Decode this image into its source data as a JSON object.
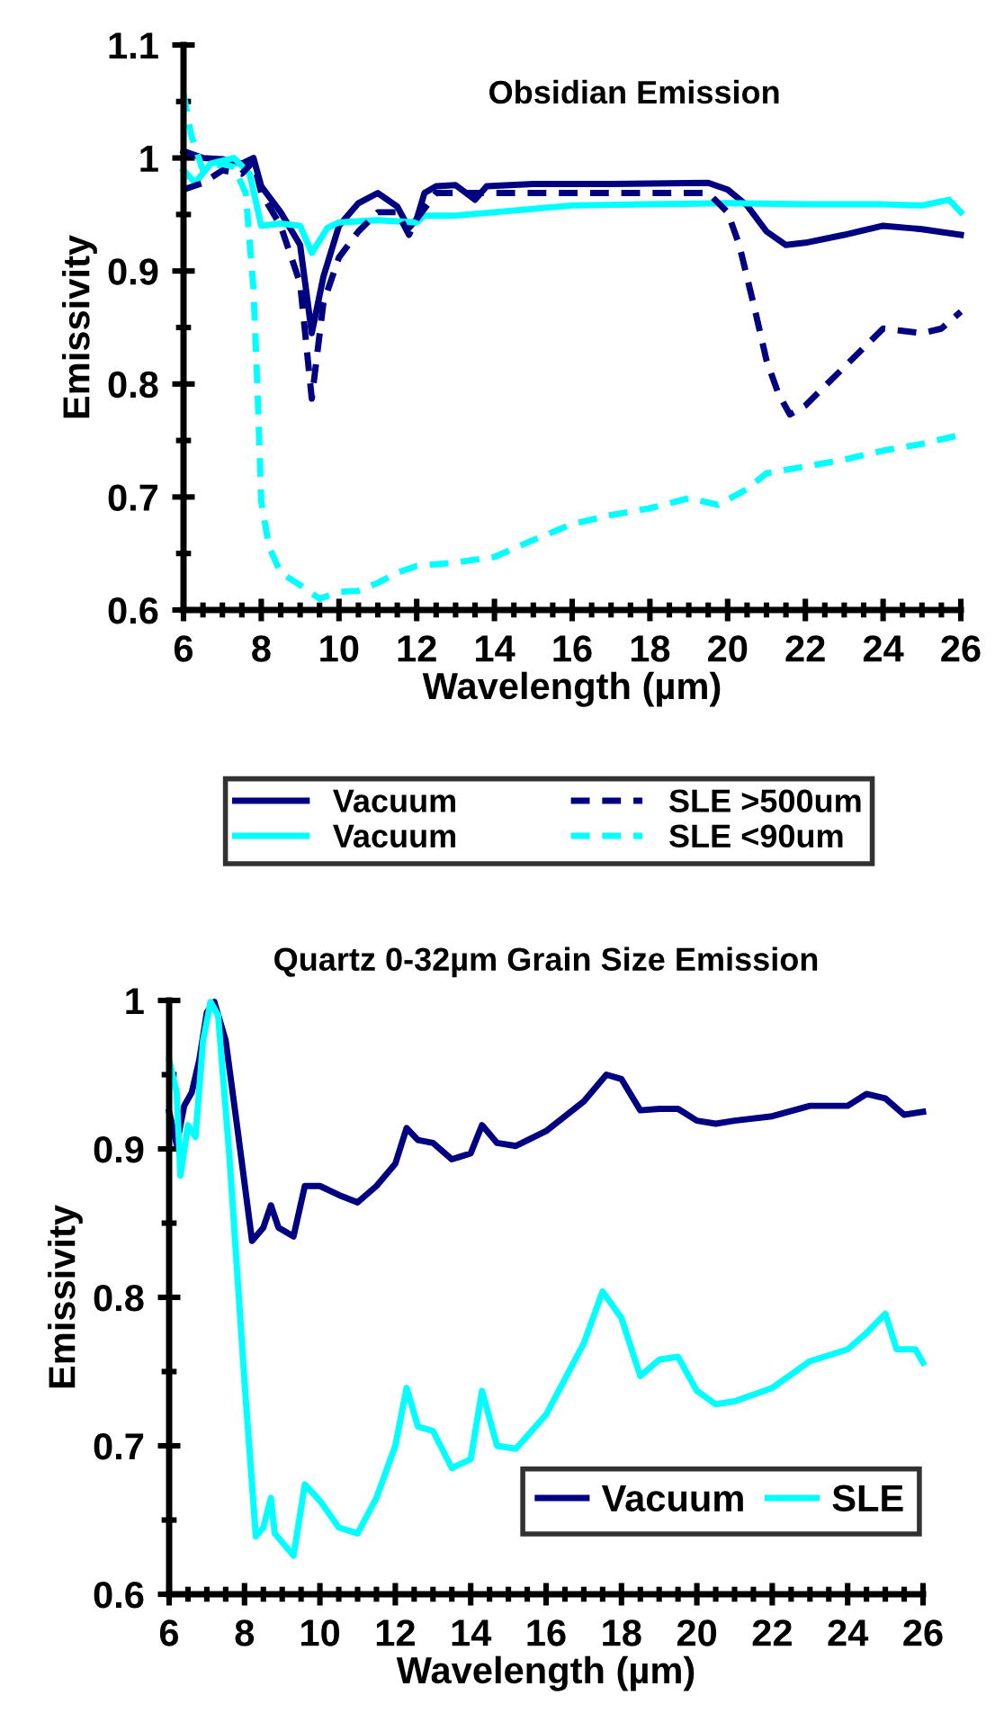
{
  "chart_data": [
    {
      "type": "line",
      "title": "Obsidian Emission",
      "xlabel": "Wavelength (µm)",
      "ylabel": "Emissivity",
      "legend": "bottom",
      "grid": false,
      "marker": "none",
      "xlim": [
        6,
        26
      ],
      "ylim": [
        0.6,
        1.1
      ],
      "xticks": [
        6,
        {
          "value": 6.5,
          "label": null
        },
        {
          "value": 7,
          "label": null
        },
        {
          "value": 7.5,
          "label": null
        },
        8,
        {
          "value": 8.5,
          "label": null
        },
        {
          "value": 9,
          "label": null
        },
        {
          "value": 9.5,
          "label": null
        },
        10,
        {
          "value": 10.5,
          "label": null
        },
        {
          "value": 11,
          "label": null
        },
        {
          "value": 11.5,
          "label": null
        },
        12,
        {
          "value": 12.5,
          "label": null
        },
        {
          "value": 13,
          "label": null
        },
        {
          "value": 13.5,
          "label": null
        },
        14,
        {
          "value": 14.5,
          "label": null
        },
        {
          "value": 15,
          "label": null
        },
        {
          "value": 15.5,
          "label": null
        },
        16,
        {
          "value": 16.5,
          "label": null
        },
        {
          "value": 17,
          "label": null
        },
        {
          "value": 17.5,
          "label": null
        },
        18,
        {
          "value": 18.5,
          "label": null
        },
        {
          "value": 19,
          "label": null
        },
        {
          "value": 19.5,
          "label": null
        },
        20,
        {
          "value": 20.5,
          "label": null
        },
        {
          "value": 21,
          "label": null
        },
        {
          "value": 21.5,
          "label": null
        },
        22,
        {
          "value": 22.5,
          "label": null
        },
        {
          "value": 23,
          "label": null
        },
        {
          "value": 23.5,
          "label": null
        },
        24,
        {
          "value": 24.5,
          "label": null
        },
        {
          "value": 25,
          "label": null
        },
        {
          "value": 25.5,
          "label": null
        },
        26
      ],
      "yticks": [
        0.6,
        {
          "value": 0.65,
          "label": null
        },
        0.7,
        {
          "value": 0.75,
          "label": null
        },
        0.8,
        {
          "value": 0.85,
          "label": null
        },
        0.9,
        {
          "value": 0.95,
          "label": null
        },
        1,
        {
          "value": 1.05,
          "label": null
        },
        1.1
      ],
      "series": [
        {
          "name": "Vacuum",
          "color": "#000080",
          "line_style": "solid",
          "x": [
            6,
            6.5,
            7,
            7.5,
            7.8,
            8,
            8.5,
            9,
            9.3,
            9.6,
            10,
            10.5,
            11,
            11.5,
            11.8,
            12,
            12.2,
            12.5,
            13,
            13.5,
            13.8,
            15,
            17,
            19.5,
            20,
            20.5,
            21,
            21.5,
            22,
            23,
            24,
            25,
            26
          ],
          "values": [
            1.006,
            1.0,
            0.999,
            0.995,
            1.0,
            0.975,
            0.952,
            0.923,
            0.845,
            0.895,
            0.94,
            0.96,
            0.969,
            0.957,
            0.938,
            0.946,
            0.969,
            0.975,
            0.976,
            0.963,
            0.975,
            0.977,
            0.977,
            0.978,
            0.972,
            0.958,
            0.935,
            0.923,
            0.925,
            0.932,
            0.94,
            0.937,
            0.932
          ]
        },
        {
          "name": "Vacuum",
          "color": "#00ffff",
          "line_style": "solid",
          "x": [
            6,
            6.3,
            6.7,
            7.3,
            7.7,
            8,
            8.5,
            9,
            9.3,
            9.7,
            10,
            11,
            12,
            12.2,
            13,
            14,
            16,
            18,
            20,
            22,
            24,
            25,
            25.7,
            26
          ],
          "values": [
            0.989,
            0.978,
            0.995,
            1.0,
            0.986,
            0.94,
            0.942,
            0.94,
            0.916,
            0.938,
            0.943,
            0.945,
            0.943,
            0.949,
            0.949,
            0.952,
            0.958,
            0.959,
            0.96,
            0.959,
            0.959,
            0.958,
            0.963,
            0.952
          ]
        },
        {
          "name": "SLE >500um",
          "color": "#000080",
          "line_style": "dashed",
          "x": [
            6,
            6.5,
            7,
            7.5,
            7.8,
            8,
            8.5,
            9,
            9.3,
            9.6,
            10,
            10.5,
            11,
            11.5,
            11.8,
            12,
            12.5,
            15,
            17,
            19.5,
            20,
            20.3,
            20.7,
            21,
            21.3,
            21.6,
            22,
            22.5,
            23,
            23.5,
            24,
            24.5,
            25,
            25.5,
            26
          ],
          "values": [
            0.972,
            0.978,
            0.989,
            0.986,
            0.997,
            0.969,
            0.94,
            0.889,
            0.787,
            0.872,
            0.912,
            0.935,
            0.952,
            0.952,
            0.932,
            0.946,
            0.969,
            0.969,
            0.969,
            0.969,
            0.952,
            0.923,
            0.866,
            0.821,
            0.792,
            0.773,
            0.781,
            0.798,
            0.815,
            0.832,
            0.849,
            0.847,
            0.845,
            0.849,
            0.864
          ]
        },
        {
          "name": "SLE <90um",
          "color": "#00ffff",
          "line_style": "dashed",
          "x": [
            6,
            6.2,
            6.5,
            7,
            7.3,
            7.6,
            7.8,
            7.9,
            8,
            8.2,
            8.5,
            9,
            9.5,
            10,
            10.5,
            11,
            11.5,
            12,
            13,
            14,
            15,
            16,
            17,
            18,
            19,
            19.75,
            20.5,
            21,
            22,
            23,
            24,
            25,
            26
          ],
          "values": [
            1.057,
            1.02,
            0.989,
            0.995,
            0.992,
            0.969,
            0.884,
            0.798,
            0.696,
            0.656,
            0.633,
            0.622,
            0.61,
            0.616,
            0.617,
            0.624,
            0.633,
            0.639,
            0.642,
            0.647,
            0.662,
            0.676,
            0.684,
            0.69,
            0.699,
            0.693,
            0.707,
            0.721,
            0.727,
            0.733,
            0.741,
            0.747,
            0.755
          ]
        }
      ]
    },
    {
      "type": "line",
      "title": "Quartz 0-32µm Grain Size Emission",
      "xlabel": "Wavelength (µm)",
      "ylabel": "Emissivity",
      "legend": "bottom right",
      "grid": false,
      "marker": "none",
      "xlim": [
        6,
        26
      ],
      "ylim": [
        0.6,
        1.0
      ],
      "xticks": [
        6,
        {
          "value": 6.5,
          "label": null
        },
        {
          "value": 7,
          "label": null
        },
        {
          "value": 7.5,
          "label": null
        },
        8,
        {
          "value": 8.5,
          "label": null
        },
        {
          "value": 9,
          "label": null
        },
        {
          "value": 9.5,
          "label": null
        },
        10,
        {
          "value": 10.5,
          "label": null
        },
        {
          "value": 11,
          "label": null
        },
        {
          "value": 11.5,
          "label": null
        },
        12,
        {
          "value": 12.5,
          "label": null
        },
        {
          "value": 13,
          "label": null
        },
        {
          "value": 13.5,
          "label": null
        },
        14,
        {
          "value": 14.5,
          "label": null
        },
        {
          "value": 15,
          "label": null
        },
        {
          "value": 15.5,
          "label": null
        },
        16,
        {
          "value": 16.5,
          "label": null
        },
        {
          "value": 17,
          "label": null
        },
        {
          "value": 17.5,
          "label": null
        },
        18,
        {
          "value": 18.5,
          "label": null
        },
        {
          "value": 19,
          "label": null
        },
        {
          "value": 19.5,
          "label": null
        },
        20,
        {
          "value": 20.5,
          "label": null
        },
        {
          "value": 21,
          "label": null
        },
        {
          "value": 21.5,
          "label": null
        },
        22,
        {
          "value": 22.5,
          "label": null
        },
        {
          "value": 23,
          "label": null
        },
        {
          "value": 23.5,
          "label": null
        },
        24,
        {
          "value": 24.5,
          "label": null
        },
        {
          "value": 25,
          "label": null
        },
        {
          "value": 25.5,
          "label": null
        },
        26
      ],
      "yticks": [
        0.6,
        {
          "value": 0.65,
          "label": null
        },
        0.7,
        {
          "value": 0.75,
          "label": null
        },
        0.8,
        {
          "value": 0.85,
          "label": null
        },
        0.9,
        {
          "value": 0.95,
          "label": null
        },
        1
      ],
      "series": [
        {
          "name": "Vacuum",
          "color": "#000080",
          "line_style": "solid",
          "x": [
            6,
            6.2,
            6.4,
            6.6,
            6.8,
            7,
            7.2,
            7.5,
            7.8,
            8,
            8.2,
            8.5,
            8.7,
            8.9,
            9.3,
            9.6,
            10,
            10.5,
            11,
            11.5,
            12,
            12.3,
            12.6,
            13,
            13.5,
            14,
            14.3,
            14.7,
            15.2,
            16,
            17,
            17.6,
            18,
            18.5,
            19,
            19.5,
            20,
            20.5,
            21,
            22,
            23,
            24,
            24.5,
            25,
            25.5,
            26
          ],
          "values": [
            0.925,
            0.903,
            0.929,
            0.938,
            0.96,
            0.992,
            0.999,
            0.973,
            0.916,
            0.877,
            0.838,
            0.847,
            0.862,
            0.847,
            0.841,
            0.875,
            0.875,
            0.869,
            0.864,
            0.875,
            0.89,
            0.914,
            0.906,
            0.904,
            0.893,
            0.897,
            0.916,
            0.904,
            0.902,
            0.912,
            0.932,
            0.95,
            0.947,
            0.926,
            0.927,
            0.927,
            0.919,
            0.917,
            0.919,
            0.922,
            0.929,
            0.929,
            0.937,
            0.934,
            0.923,
            0.925
          ]
        },
        {
          "name": "SLE",
          "color": "#00ffff",
          "line_style": "solid",
          "x": [
            6,
            6.2,
            6.3,
            6.5,
            6.7,
            6.9,
            7.1,
            7.3,
            7.6,
            8,
            8.3,
            8.5,
            8.7,
            8.8,
            9.3,
            9.6,
            10,
            10.5,
            11,
            11.5,
            12,
            12.3,
            12.6,
            13,
            13.5,
            14,
            14.3,
            14.7,
            15.2,
            16,
            17,
            17.5,
            18,
            18.5,
            19,
            19.5,
            20,
            20.5,
            21,
            22,
            23,
            24,
            24.5,
            25,
            25.3,
            25.8,
            26
          ],
          "values": [
            0.96,
            0.938,
            0.882,
            0.916,
            0.908,
            0.973,
            0.999,
            0.99,
            0.895,
            0.743,
            0.639,
            0.645,
            0.665,
            0.641,
            0.626,
            0.674,
            0.663,
            0.645,
            0.641,
            0.665,
            0.7,
            0.739,
            0.713,
            0.71,
            0.685,
            0.691,
            0.737,
            0.7,
            0.698,
            0.721,
            0.769,
            0.804,
            0.786,
            0.747,
            0.758,
            0.76,
            0.737,
            0.728,
            0.73,
            0.739,
            0.757,
            0.765,
            0.776,
            0.789,
            0.765,
            0.765,
            0.756
          ]
        }
      ]
    }
  ]
}
